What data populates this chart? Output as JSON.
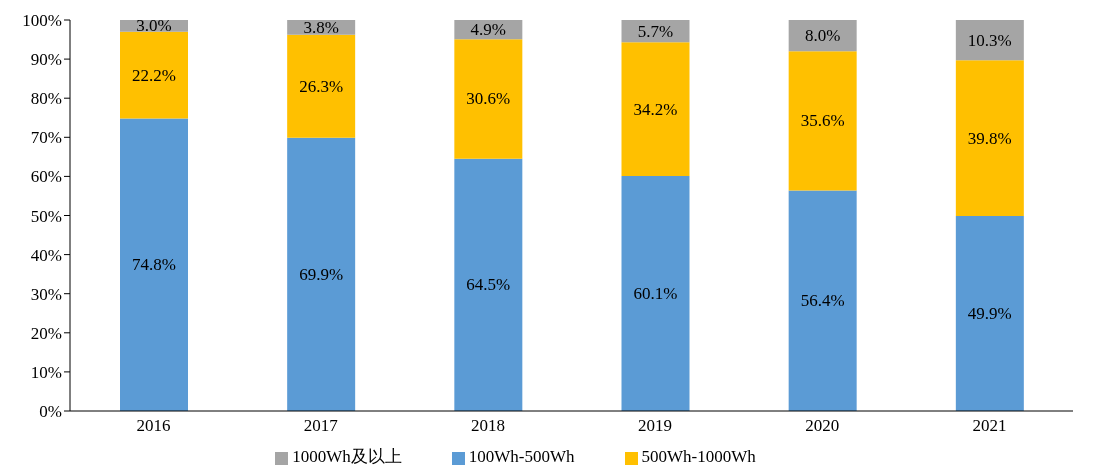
{
  "chart_data": {
    "type": "bar",
    "stacked": true,
    "categories": [
      "2016",
      "2017",
      "2018",
      "2019",
      "2020",
      "2021"
    ],
    "series": [
      {
        "name": "100Wh-500Wh",
        "color": "#5b9bd5",
        "values": [
          74.8,
          69.9,
          64.5,
          60.1,
          56.4,
          49.9
        ],
        "value_labels": [
          "74.8%",
          "69.9%",
          "64.5%",
          "60.1%",
          "56.4%",
          "49.9%"
        ]
      },
      {
        "name": "500Wh-1000Wh",
        "color": "#ffc000",
        "values": [
          22.2,
          26.3,
          30.6,
          34.2,
          35.6,
          39.8
        ],
        "value_labels": [
          "22.2%",
          "26.3%",
          "30.6%",
          "34.2%",
          "35.6%",
          "39.8%"
        ]
      },
      {
        "name": "1000Wh及以上",
        "color": "#a5a5a5",
        "values": [
          3.0,
          3.8,
          4.9,
          5.7,
          8.0,
          10.3
        ],
        "value_labels": [
          "3.0%",
          "3.8%",
          "4.9%",
          "5.7%",
          "8.0%",
          "10.3%"
        ]
      }
    ],
    "ylim": [
      0,
      100
    ],
    "yticks": [
      {
        "value": 0,
        "label": "0%"
      },
      {
        "value": 10,
        "label": "10%"
      },
      {
        "value": 20,
        "label": "20%"
      },
      {
        "value": 30,
        "label": "30%"
      },
      {
        "value": 40,
        "label": "40%"
      },
      {
        "value": 50,
        "label": "50%"
      },
      {
        "value": 60,
        "label": "60%"
      },
      {
        "value": 70,
        "label": "70%"
      },
      {
        "value": 80,
        "label": "80%"
      },
      {
        "value": 90,
        "label": "90%"
      },
      {
        "value": 100,
        "label": "100%"
      }
    ],
    "grid": false,
    "legend": "bottom"
  }
}
